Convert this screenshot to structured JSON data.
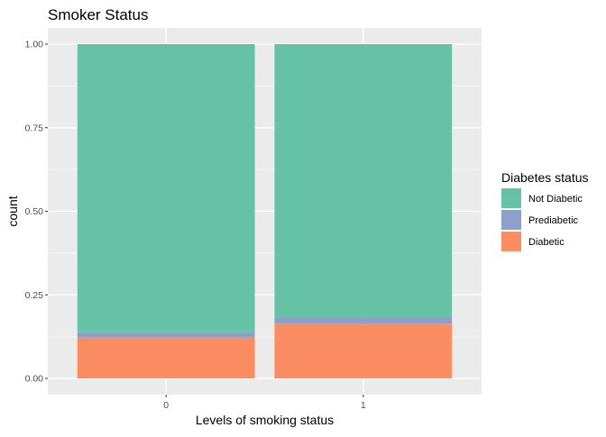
{
  "chart_data": {
    "type": "bar",
    "stacked": true,
    "title": "Smoker Status",
    "xlabel": "Levels of smoking status",
    "ylabel": "count",
    "categories": [
      "0",
      "1"
    ],
    "ylim": [
      0,
      1
    ],
    "yticks": [
      "0.00",
      "0.25",
      "0.50",
      "0.75",
      "1.00"
    ],
    "series": [
      {
        "name": "Diabetic",
        "values": [
          0.122,
          0.164
        ],
        "color": "#FC8D62"
      },
      {
        "name": "Prediabetic",
        "values": [
          0.016,
          0.018
        ],
        "color": "#8DA0CB"
      },
      {
        "name": "Not Diabetic",
        "values": [
          0.862,
          0.818
        ],
        "color": "#66C2A5"
      }
    ],
    "legend": {
      "title": "Diabetes status",
      "position": "right",
      "order": [
        "Not Diabetic",
        "Prediabetic",
        "Diabetic"
      ]
    },
    "grid": true,
    "panel_background": "#EBEBEB"
  }
}
